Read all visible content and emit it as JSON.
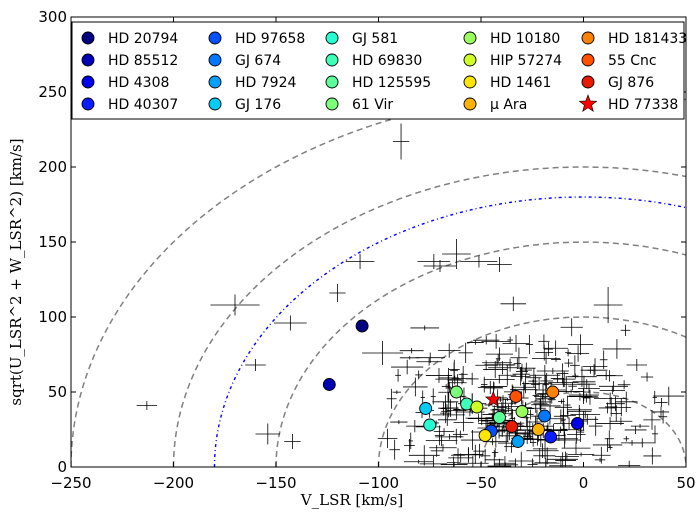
{
  "chart_data": {
    "type": "scatter",
    "title": "",
    "xlabel": "V_LSR [km/s]",
    "ylabel": "sqrt(U_LSR^2 + W_LSR^2) [km/s]",
    "xlim": [
      -250,
      50
    ],
    "ylim": [
      0,
      300
    ],
    "x_ticks": [
      "−250",
      "−200",
      "−150",
      "−100",
      "−50",
      "0",
      "50"
    ],
    "y_ticks": [
      "0",
      "50",
      "100",
      "150",
      "200",
      "250",
      "300"
    ],
    "grid": false,
    "legend_placement": "top",
    "ring_curves": [
      {
        "radius": 50,
        "style": "dashed",
        "color": "#808080"
      },
      {
        "radius": 100,
        "style": "dashed",
        "color": "#808080"
      },
      {
        "radius": 150,
        "style": "dashed",
        "color": "#808080"
      },
      {
        "radius": 200,
        "style": "dashed",
        "color": "#808080"
      },
      {
        "radius": 250,
        "style": "dashed",
        "color": "#808080"
      },
      {
        "radius": 180,
        "style": "dash-dot",
        "color": "#0000ff"
      }
    ],
    "stars": [
      {
        "name": "HD 20794",
        "x": -108,
        "y": 94,
        "color": "#000080"
      },
      {
        "name": "HD 85512",
        "x": -124,
        "y": 55,
        "color": "#0000b4"
      },
      {
        "name": "HD 4308",
        "x": -3,
        "y": 29,
        "color": "#0000e8"
      },
      {
        "name": "HD 40307",
        "x": -16,
        "y": 20,
        "color": "#0b1cff"
      },
      {
        "name": "HD 97658",
        "x": -45,
        "y": 24,
        "color": "#0050ff"
      },
      {
        "name": "GJ 674",
        "x": -19,
        "y": 34,
        "color": "#0078ff"
      },
      {
        "name": "HD 7924",
        "x": -32,
        "y": 17,
        "color": "#00a0ff"
      },
      {
        "name": "GJ 176",
        "x": -77,
        "y": 39,
        "color": "#00ccf6"
      },
      {
        "name": "GJ 581",
        "x": -75,
        "y": 28,
        "color": "#25ffd1"
      },
      {
        "name": "HD 69830",
        "x": -57,
        "y": 42,
        "color": "#3fffb8"
      },
      {
        "name": "HD 125595",
        "x": -41,
        "y": 33,
        "color": "#5cff9a"
      },
      {
        "name": "61 Vir",
        "x": -62,
        "y": 50,
        "color": "#7cff7a"
      },
      {
        "name": "HD 10180",
        "x": -30,
        "y": 37,
        "color": "#9aff5c"
      },
      {
        "name": "HIP 57274",
        "x": -52,
        "y": 40,
        "color": "#d1ff25"
      },
      {
        "name": "HD 1461",
        "x": -48,
        "y": 21,
        "color": "#ffe600"
      },
      {
        "name": "μ Ara",
        "x": -22,
        "y": 25,
        "color": "#ffb300"
      },
      {
        "name": "HD 181433",
        "x": -15,
        "y": 50,
        "color": "#ff8200"
      },
      {
        "name": "55 Cnc",
        "x": -33,
        "y": 47,
        "color": "#ff5200"
      },
      {
        "name": "GJ 876",
        "x": -35,
        "y": 27,
        "color": "#e81a00"
      },
      {
        "name": "HD 77338",
        "x": -44,
        "y": 45,
        "color": "#ff0000",
        "marker": "star"
      }
    ]
  }
}
